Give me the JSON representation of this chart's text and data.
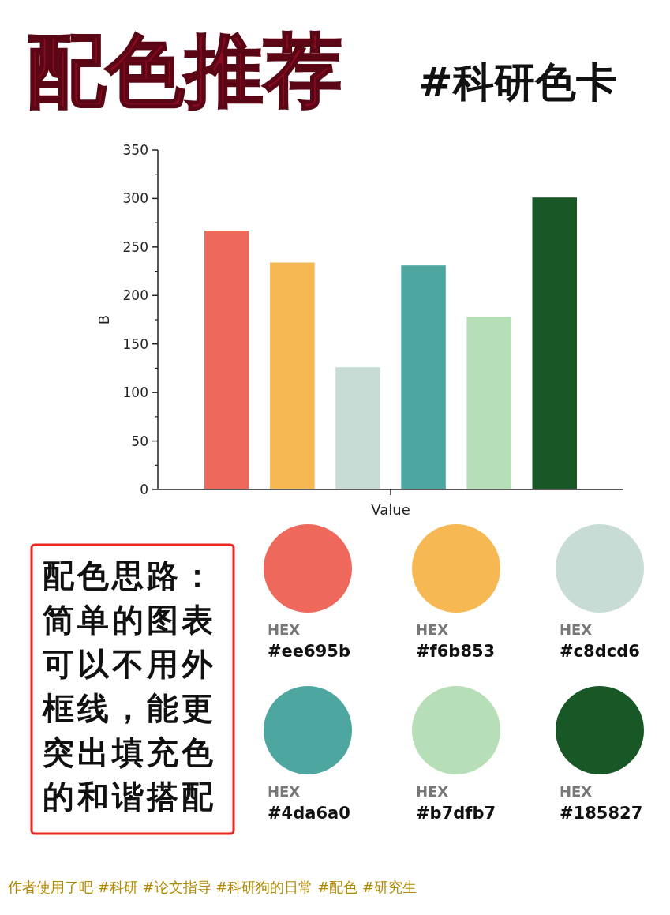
{
  "chart_data": {
    "type": "bar",
    "title": "配色推荐",
    "subtitle": "#科研色卡",
    "xlabel": "Value",
    "ylabel": "B",
    "categories": [
      null,
      null,
      null,
      null,
      null,
      null
    ],
    "values": [
      267,
      234,
      126,
      231,
      178,
      301
    ],
    "colors": [
      "#ee695b",
      "#f6b853",
      "#c8dcd6",
      "#4da6a0",
      "#b7dfb7",
      "#185827"
    ],
    "ylim": [
      0,
      350
    ],
    "yticks": [
      0,
      50,
      100,
      150,
      200,
      250,
      300,
      350
    ],
    "annotations": [
      "配色思路：简单的图表可以不用外框线，能更突出填充色的和谐搭配",
      "HEX",
      "#ee695b",
      "HEX",
      "#f6b853",
      "HEX",
      "#c8dcd6",
      "HEX",
      "#4da6a0",
      "HEX",
      "#b7dfb7",
      "HEX",
      "#185827",
      "作者使用了吧 #科研 #论文指导 #科研狗的日常 #配色 #研究生"
    ]
  }
}
